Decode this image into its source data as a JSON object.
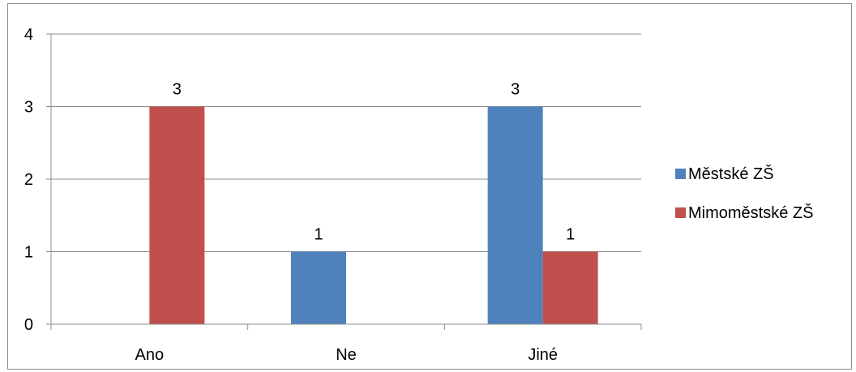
{
  "chart_data": {
    "type": "bar",
    "categories": [
      "Ano",
      "Ne",
      "Jiné"
    ],
    "series": [
      {
        "name": "Městské ZŠ",
        "color": "#4f81bd",
        "values": [
          0,
          1,
          3
        ]
      },
      {
        "name": "Mimoměstské ZŠ",
        "color": "#c0504d",
        "values": [
          3,
          0,
          1
        ]
      }
    ],
    "data_labels": [
      [
        null,
        "1",
        "3"
      ],
      [
        "3",
        null,
        "1"
      ]
    ],
    "y_ticks": [
      "0",
      "1",
      "2",
      "3",
      "4"
    ],
    "ylim": [
      0,
      4
    ],
    "grid": true,
    "legend_position": "right",
    "title": "",
    "xlabel": "",
    "ylabel": ""
  }
}
